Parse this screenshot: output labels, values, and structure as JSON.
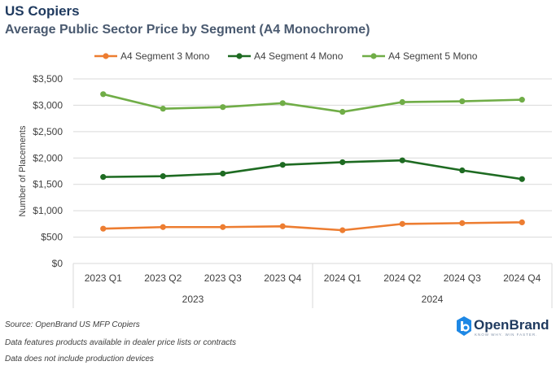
{
  "header": {
    "title": "US Copiers",
    "subtitle": "Average Public Sector Price by Segment (A4 Monochrome)"
  },
  "footer": {
    "source": "Source: OpenBrand US MFP Copiers",
    "note1": "Data features products available in dealer price lists or contracts",
    "note2": "Data does not include production devices"
  },
  "logo": {
    "name": "OpenBrand",
    "tagline": "KNOW WHY. WIN FASTER."
  },
  "chart_data": {
    "type": "line",
    "title": "",
    "xlabel": "",
    "ylabel": "Number of Placements",
    "ylim": [
      0,
      3500
    ],
    "y_ticks": [
      0,
      500,
      1000,
      1500,
      2000,
      2500,
      3000,
      3500
    ],
    "y_tick_labels": [
      "$0",
      "$500",
      "$1,000",
      "$1,500",
      "$2,000",
      "$2,500",
      "$3,000",
      "$3,500"
    ],
    "grid": true,
    "legend": "top-center",
    "categories": [
      "2023 Q1",
      "2023 Q2",
      "2023 Q3",
      "2023 Q4",
      "2024 Q1",
      "2024 Q2",
      "2024 Q3",
      "2024 Q4"
    ],
    "groups": [
      {
        "label": "2023",
        "count": 4
      },
      {
        "label": "2024",
        "count": 4
      }
    ],
    "series": [
      {
        "name": "A4 Segment 3 Mono",
        "color": "#ed7d31",
        "values": [
          660,
          690,
          690,
          705,
          630,
          750,
          765,
          780
        ]
      },
      {
        "name": "A4 Segment 4 Mono",
        "color": "#1e6b22",
        "values": [
          1640,
          1655,
          1705,
          1870,
          1920,
          1955,
          1765,
          1600
        ]
      },
      {
        "name": "A4 Segment 5 Mono",
        "color": "#70ad47",
        "values": [
          3210,
          2935,
          2965,
          3040,
          2875,
          3060,
          3075,
          3105
        ]
      }
    ]
  }
}
